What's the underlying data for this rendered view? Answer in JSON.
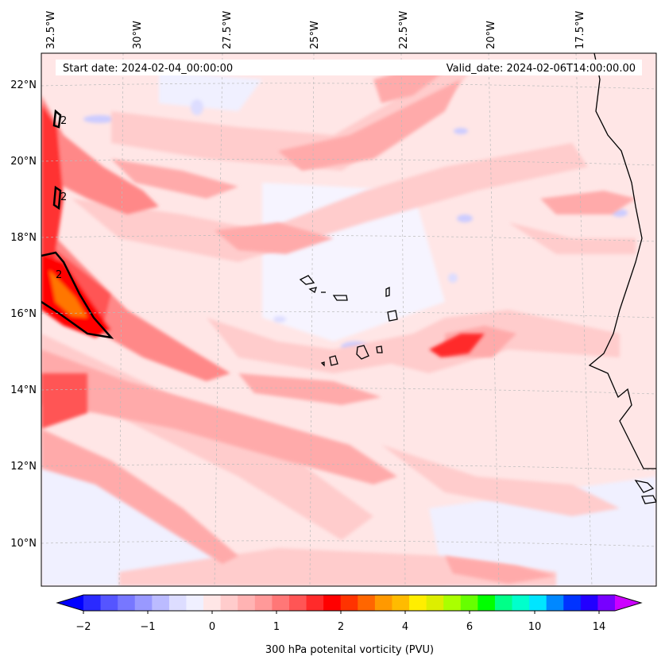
{
  "header": {
    "start_date": "Start date: 2024-02-04_00:00:00",
    "valid_date": "Valid_date: 2024-02-06T14:00:00.00"
  },
  "map": {
    "lon_labels": [
      "32.5°W",
      "30°W",
      "27.5°W",
      "25°W",
      "22.5°W",
      "20°W",
      "17.5°W"
    ],
    "lat_labels": [
      "22°N",
      "20°N",
      "18°N",
      "16°N",
      "14°N",
      "12°N",
      "10°N"
    ],
    "contour_label": "2"
  },
  "colorbar": {
    "ticks": [
      "−2",
      "−1",
      "0",
      "1",
      "2",
      "4",
      "6",
      "10",
      "14"
    ],
    "label": "300 hPa potenital vorticity (PVU)",
    "colors": [
      "#0000ff",
      "#2a2aff",
      "#5555ff",
      "#7777ff",
      "#9999ff",
      "#bbbbff",
      "#ddddff",
      "#f0f0ff",
      "#ffe6e6",
      "#ffcccc",
      "#ffb3b3",
      "#ff9999",
      "#ff7777",
      "#ff5555",
      "#ff2a2a",
      "#ff0000",
      "#ff3300",
      "#ff6600",
      "#ff9900",
      "#ffbb00",
      "#ffee00",
      "#ddee00",
      "#aaff00",
      "#66ff00",
      "#00ff00",
      "#00ff88",
      "#00ffcc",
      "#00e5ff",
      "#0088ff",
      "#0033ff",
      "#2200ff",
      "#7700ff",
      "#cc00ff"
    ]
  }
}
